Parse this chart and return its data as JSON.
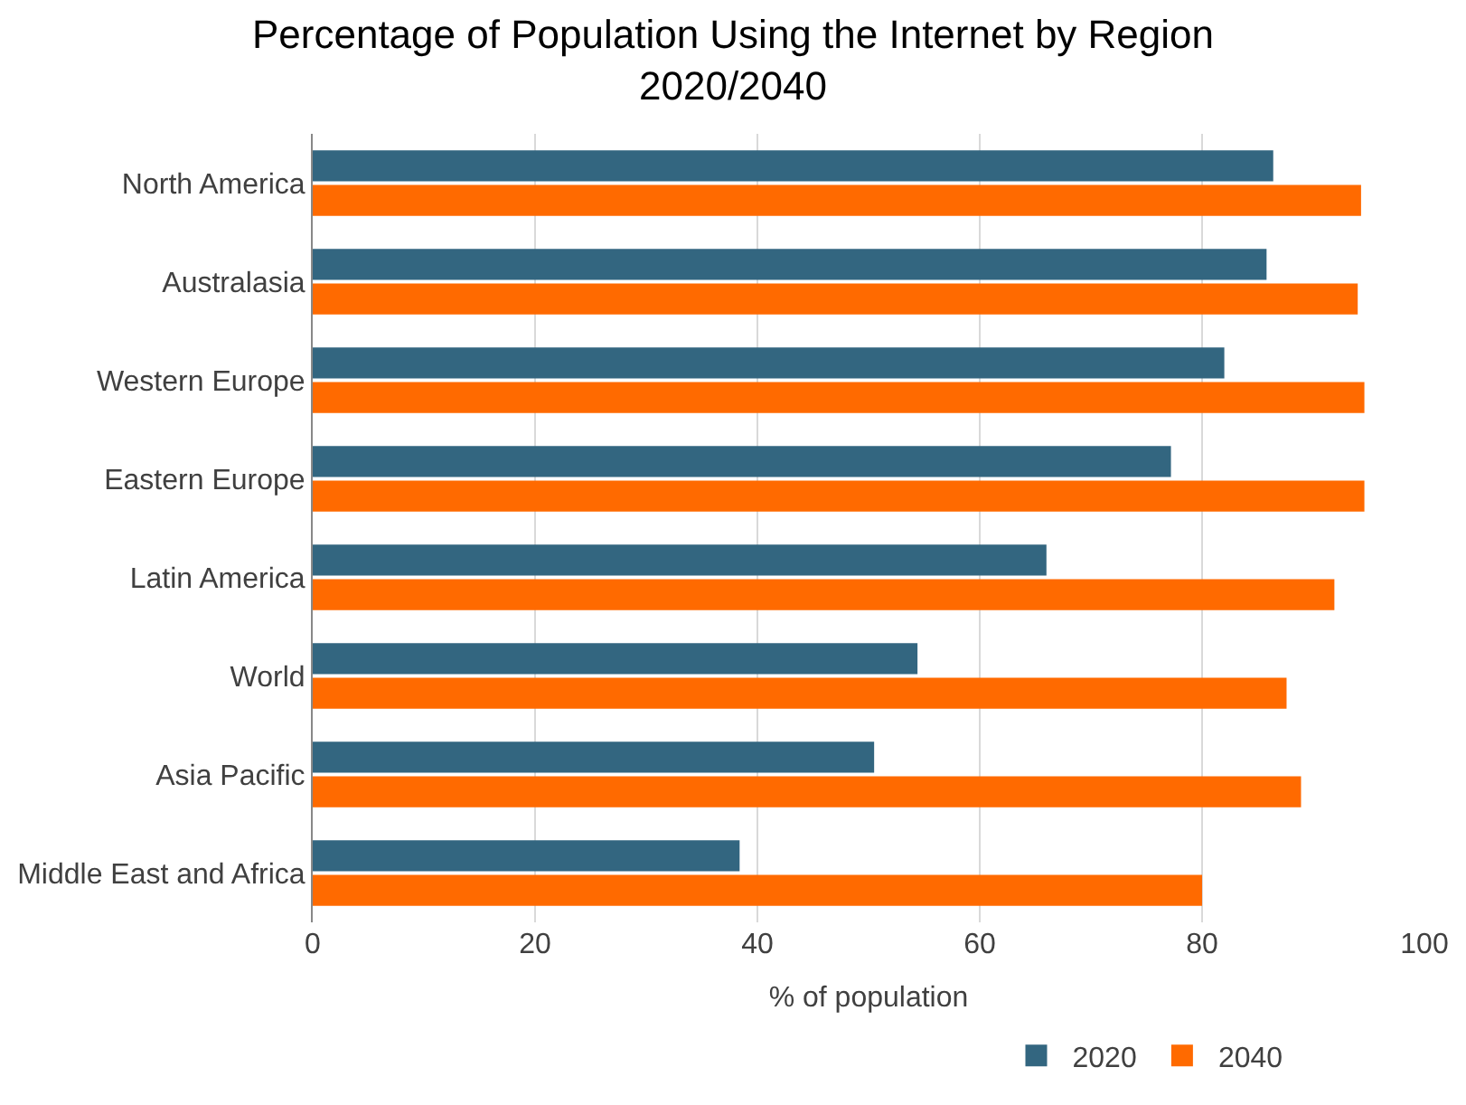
{
  "chart_data": {
    "type": "bar",
    "orientation": "horizontal",
    "title": "Percentage of Population Using the Internet by Region\n2020/2040",
    "xlabel": "% of population",
    "categories": [
      "North America",
      "Australasia",
      "Western Europe",
      "Eastern Europe",
      "Latin America",
      "World",
      "Asia Pacific",
      "Middle East and Africa"
    ],
    "series": [
      {
        "name": "2020",
        "color": "#336680",
        "values": [
          86.4,
          85.8,
          82.0,
          77.2,
          66.0,
          54.4,
          50.5,
          38.4
        ]
      },
      {
        "name": "2040",
        "color": "#ff6a00",
        "values": [
          94.3,
          94.0,
          94.6,
          94.6,
          91.9,
          87.6,
          88.9,
          80.0
        ]
      }
    ],
    "xlim": [
      0,
      100
    ],
    "xticks": [
      0,
      20,
      40,
      60,
      80,
      100
    ],
    "grid": "x",
    "legend": "bottom"
  }
}
